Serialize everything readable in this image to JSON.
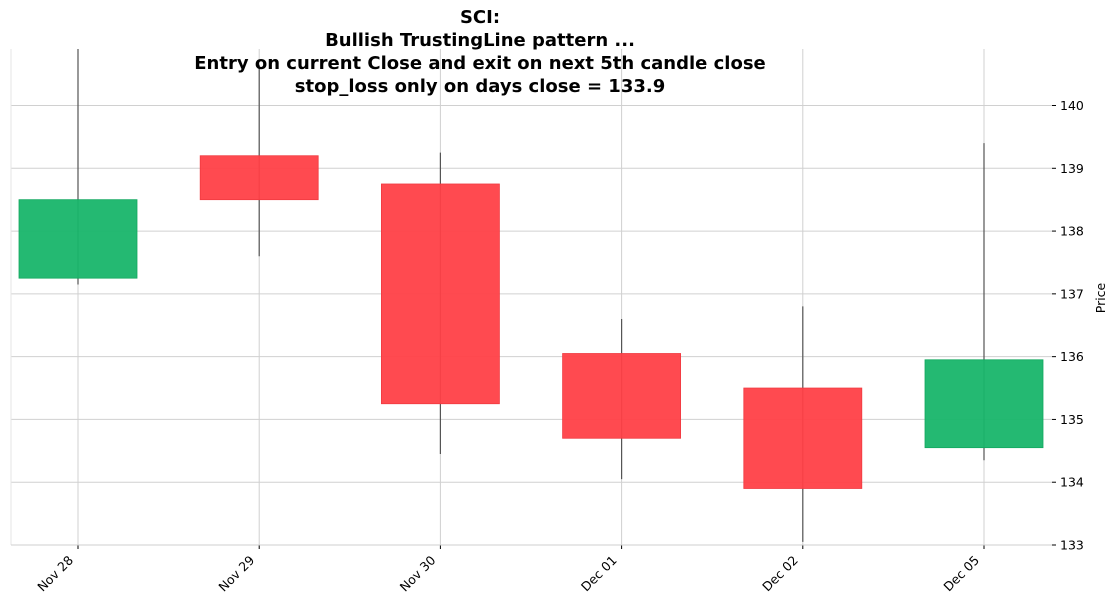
{
  "chart_data": {
    "type": "candlestick",
    "title": "SCI:\nBullish TrustingLine pattern ...\nEntry on current Close and exit on next 5th candle close\nstop_loss only on days close = 133.9",
    "ylabel": "Price",
    "xlabel": "",
    "ylim": [
      133,
      140.9
    ],
    "yticks": [
      133,
      134,
      135,
      136,
      137,
      138,
      139,
      140
    ],
    "grid": true,
    "colors": {
      "up": "#18b56a",
      "down": "#ff4047",
      "wick": "#555555",
      "grid": "#d0d0d0"
    },
    "candles": [
      {
        "date": "Nov 28",
        "open": 137.25,
        "high": 140.9,
        "low": 137.15,
        "close": 138.5
      },
      {
        "date": "Nov 29",
        "open": 139.2,
        "high": 140.65,
        "low": 137.6,
        "close": 138.5
      },
      {
        "date": "Nov 30",
        "open": 138.75,
        "high": 139.25,
        "low": 134.45,
        "close": 135.25
      },
      {
        "date": "Dec 01",
        "open": 136.05,
        "high": 136.6,
        "low": 134.05,
        "close": 134.7
      },
      {
        "date": "Dec 02",
        "open": 135.5,
        "high": 136.8,
        "low": 133.05,
        "close": 133.9
      },
      {
        "date": "Dec 05",
        "open": 134.55,
        "high": 139.4,
        "low": 134.35,
        "close": 135.95
      }
    ]
  }
}
